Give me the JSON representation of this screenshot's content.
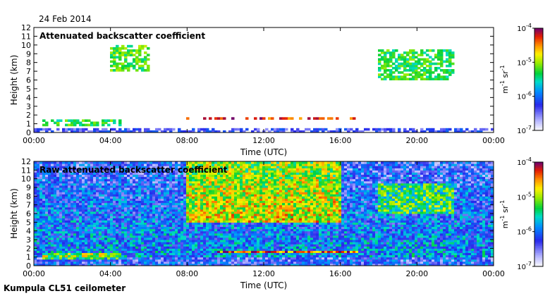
{
  "figure": {
    "date": "24 Feb 2014",
    "site": "Kumpula CL51 ceilometer"
  },
  "chart_data": [
    {
      "type": "heatmap",
      "title": "Attenuated backscatter coefficient",
      "xlabel": "Time (UTC)",
      "ylabel": "Height (km)",
      "xticks": [
        "00:00",
        "04:00",
        "08:00",
        "12:00",
        "16:00",
        "20:00",
        "00:00"
      ],
      "yticks": [
        "0",
        "1",
        "2",
        "3",
        "4",
        "5",
        "6",
        "7",
        "8",
        "9",
        "10",
        "11",
        "12"
      ],
      "x_range_hours": [
        0,
        24
      ],
      "ylim": [
        0,
        12
      ],
      "colorbar": {
        "label": "m-1 sr-1",
        "ticks": [
          "10-7",
          "10-6",
          "10-5",
          "10-4"
        ],
        "scale": "log",
        "range": [
          1e-07,
          0.0001
        ]
      },
      "features": [
        {
          "name": "boundary layer",
          "t_start": 0,
          "t_end": 24,
          "h_bottom": 0,
          "h_top": 0.6,
          "level": -6.3
        },
        {
          "name": "low cloud",
          "t_start": 0.5,
          "t_end": 4.5,
          "h_bottom": 0.7,
          "h_top": 1.5,
          "level": -5.3
        },
        {
          "name": "cloud base layer",
          "t_start": 8.0,
          "t_end": 17.0,
          "h_bottom": 1.4,
          "h_top": 1.8,
          "level": -4.3
        },
        {
          "name": "mid-level cloud",
          "t_start": 4.0,
          "t_end": 6.0,
          "h_bottom": 7.0,
          "h_top": 10.0,
          "level": -5.2
        },
        {
          "name": "high cloud",
          "t_start": 18.0,
          "t_end": 22.0,
          "h_bottom": 6.0,
          "h_top": 9.5,
          "level": -5.3
        }
      ]
    },
    {
      "type": "heatmap",
      "title": "Raw attenuated backscatter coefficient",
      "xlabel": "Time (UTC)",
      "ylabel": "Height (km)",
      "xticks": [
        "00:00",
        "04:00",
        "08:00",
        "12:00",
        "16:00",
        "20:00",
        "00:00"
      ],
      "yticks": [
        "0",
        "1",
        "2",
        "3",
        "4",
        "5",
        "6",
        "7",
        "8",
        "9",
        "10",
        "11",
        "12"
      ],
      "x_range_hours": [
        0,
        24
      ],
      "ylim": [
        0,
        12
      ],
      "colorbar": {
        "label": "m-1 sr-1",
        "ticks": [
          "10-7",
          "10-6",
          "10-5",
          "10-4"
        ],
        "scale": "log",
        "range": [
          1e-07,
          0.0001
        ]
      },
      "features": [
        {
          "name": "noise background",
          "t_start": 0,
          "t_end": 24,
          "h_bottom": 0,
          "h_top": 12,
          "level": -5.8
        },
        {
          "name": "daytime noise maximum",
          "t_start": 8,
          "t_end": 16,
          "h_bottom": 5,
          "h_top": 12,
          "level": -4.6
        },
        {
          "name": "low cloud",
          "t_start": 0.5,
          "t_end": 4.5,
          "h_bottom": 0.7,
          "h_top": 1.5,
          "level": -5.0
        },
        {
          "name": "cloud base layer",
          "t_start": 9.5,
          "t_end": 17.0,
          "h_bottom": 1.5,
          "h_top": 1.8,
          "level": -4.3
        },
        {
          "name": "high cloud",
          "t_start": 18.0,
          "t_end": 22.0,
          "h_bottom": 6.0,
          "h_top": 9.5,
          "level": -5.0
        }
      ]
    }
  ]
}
